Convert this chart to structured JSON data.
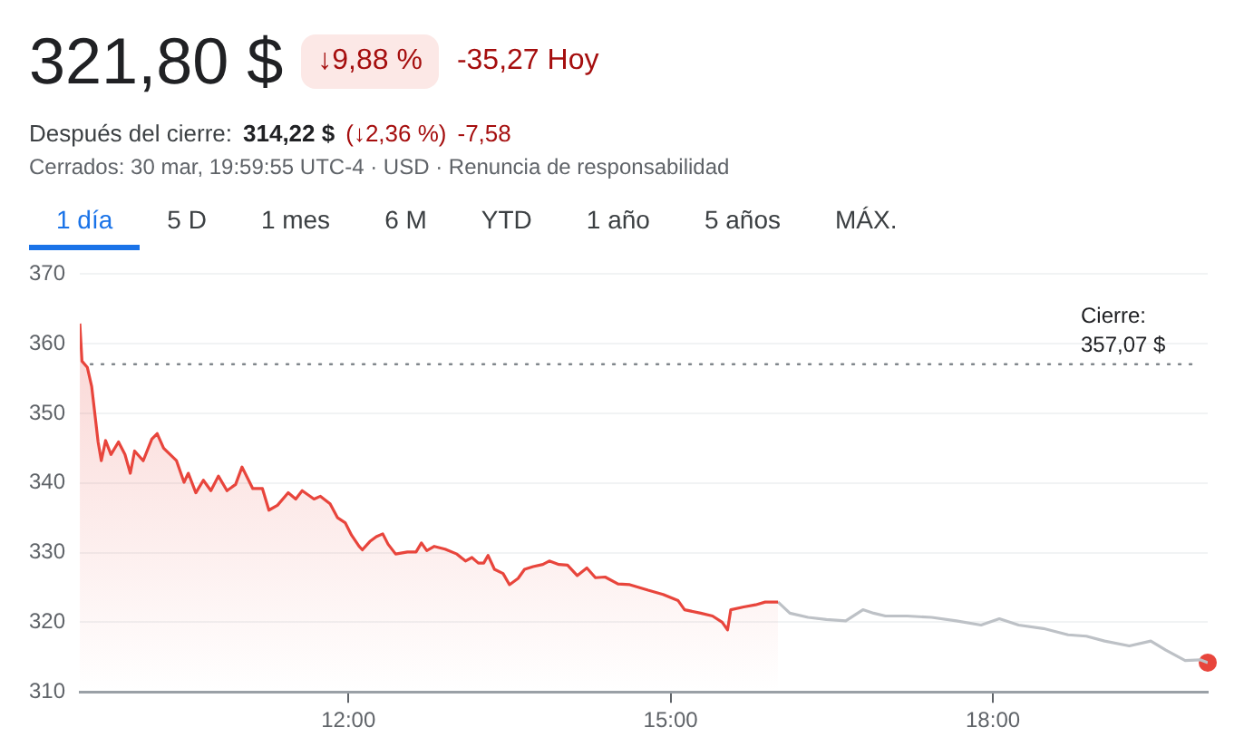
{
  "chart_data": {
    "type": "line",
    "title": "321,80 $",
    "annotations": [
      "↓9,88 %",
      "-35,27 Hoy",
      "Después del cierre:",
      "314,22 $",
      "(↓2,36 %)",
      "-7,58",
      "Cerrados: 30 mar, 19:59:55 UTC-4 · USD · Renuncia de responsabilidad",
      "1 día",
      "5 D",
      "1 mes",
      "6 M",
      "YTD",
      "1 año",
      "5 años",
      "MÁX."
    ],
    "xlim": [
      9.5,
      20
    ],
    "xticks": [
      {
        "value": 12,
        "label": "12:00"
      },
      {
        "value": 15,
        "label": "15:00"
      },
      {
        "value": 18,
        "label": "18:00"
      }
    ],
    "ylim": [
      310,
      370
    ],
    "yticks": [
      310,
      320,
      330,
      340,
      350,
      360,
      370
    ],
    "grid": "y",
    "legend": false,
    "marker": "none",
    "line_style": "solid",
    "ref_lines": [
      {
        "axis": "y",
        "value": 357.07,
        "label": "Cierre:\n357,07 $",
        "line_style": "dotted",
        "color": "#80868b"
      }
    ],
    "series": [
      {
        "type": "area",
        "color": "#e8453c",
        "x": [
          9.5,
          9.52,
          9.57,
          9.61,
          9.65,
          9.67,
          9.7,
          9.74,
          9.79,
          9.86,
          9.92,
          9.97,
          10.01,
          10.09,
          10.17,
          10.22,
          10.28,
          10.4,
          10.47,
          10.51,
          10.58,
          10.65,
          10.72,
          10.79,
          10.87,
          10.95,
          11.01,
          11.11,
          11.2,
          11.26,
          11.34,
          11.44,
          11.51,
          11.57,
          11.68,
          11.74,
          11.83,
          11.9,
          11.97,
          12.03,
          12.1,
          12.13,
          12.2,
          12.26,
          12.32,
          12.37,
          12.44,
          12.55,
          12.63,
          12.68,
          12.73,
          12.8,
          12.9,
          13.01,
          13.09,
          13.15,
          13.21,
          13.26,
          13.3,
          13.36,
          13.44,
          13.5,
          13.58,
          13.64,
          13.72,
          13.81,
          13.87,
          13.96,
          14.04,
          14.13,
          14.22,
          14.3,
          14.39,
          14.51,
          14.62,
          14.79,
          14.93,
          15.07,
          15.13,
          15.28,
          15.39,
          15.48,
          15.53,
          15.56,
          15.68,
          15.79,
          15.88,
          16.0
        ],
        "values": [
          362.9,
          357.5,
          356.6,
          353.9,
          348.6,
          345.9,
          343.2,
          346.1,
          344.1,
          345.9,
          344.1,
          341.4,
          344.6,
          343.2,
          346.3,
          347.1,
          345.0,
          343.2,
          340.1,
          341.4,
          338.6,
          340.4,
          338.9,
          341.0,
          338.9,
          339.8,
          342.3,
          339.2,
          339.2,
          336.1,
          336.8,
          338.6,
          337.7,
          338.9,
          337.7,
          338.1,
          337.0,
          335.0,
          334.3,
          332.5,
          330.9,
          330.4,
          331.6,
          332.3,
          332.7,
          331.2,
          329.8,
          330.1,
          330.1,
          331.4,
          330.3,
          330.9,
          330.5,
          329.8,
          328.8,
          329.3,
          328.5,
          328.5,
          329.6,
          327.6,
          327.0,
          325.4,
          326.3,
          327.6,
          328.0,
          328.3,
          328.8,
          328.3,
          328.2,
          326.7,
          327.8,
          326.4,
          326.5,
          325.5,
          325.4,
          324.6,
          324.0,
          323.1,
          321.8,
          321.3,
          320.9,
          320.0,
          318.9,
          321.8,
          322.2,
          322.5,
          322.9,
          322.9
        ]
      },
      {
        "color": "#bdc1c6",
        "x": [
          16.0,
          16.11,
          16.28,
          16.45,
          16.63,
          16.79,
          16.89,
          17.0,
          17.2,
          17.43,
          17.66,
          17.89,
          18.06,
          18.24,
          18.47,
          18.7,
          18.87,
          19.04,
          19.27,
          19.47,
          19.61,
          19.79,
          19.93,
          20.0
        ],
        "values": [
          322.9,
          321.3,
          320.7,
          320.4,
          320.2,
          321.8,
          321.3,
          320.9,
          320.9,
          320.7,
          320.2,
          319.6,
          320.5,
          319.6,
          319.1,
          318.2,
          318.0,
          317.3,
          316.6,
          317.3,
          316.0,
          314.5,
          314.6,
          314.2
        ]
      },
      {
        "type": "scatter",
        "marker": "circle",
        "color": "#e8453c",
        "x": [
          20
        ],
        "values": [
          314.2
        ]
      }
    ]
  }
}
